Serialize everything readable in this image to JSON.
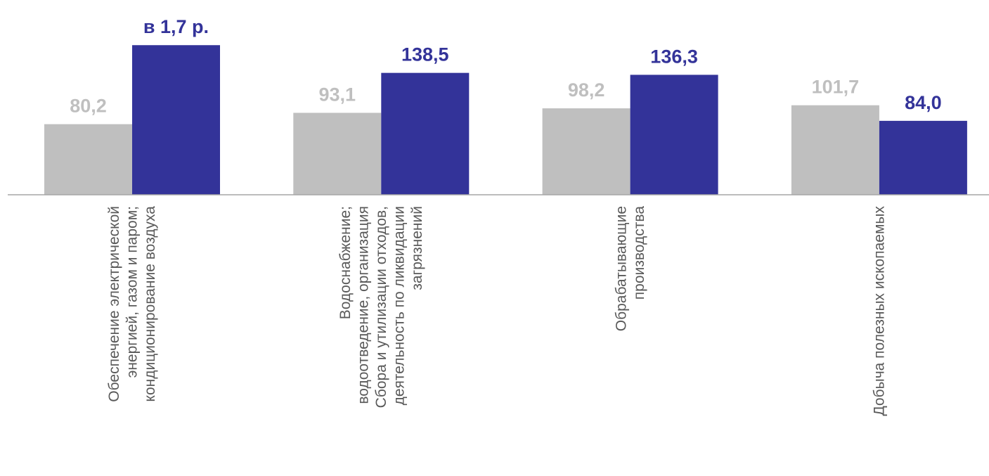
{
  "chart_data": {
    "type": "bar",
    "categories": [
      [
        "Обеспечение электрической",
        "энергией, газом и паром;",
        "кондиционирование воздуха"
      ],
      [
        "Водоснабжение;",
        "водоотведение, организация",
        "Сбора и утилизации отходов,",
        "деятельность по ликвидации",
        "загрязнений"
      ],
      [
        "Обрабатывающие",
        "производства"
      ],
      [
        "Добыча полезных ископаемых"
      ]
    ],
    "series": [
      {
        "color": "#bfbfbf",
        "values": [
          80.2,
          93.1,
          98.2,
          101.7
        ],
        "labels": [
          "80,2",
          "93,1",
          "98,2",
          "101,7"
        ]
      },
      {
        "color": "#333399",
        "values": [
          170,
          138.5,
          136.3,
          84.0
        ],
        "labels": [
          "в 1,7 р.",
          "138,5",
          "136,3",
          "84,0"
        ]
      }
    ],
    "grid": false,
    "legend": "none"
  }
}
